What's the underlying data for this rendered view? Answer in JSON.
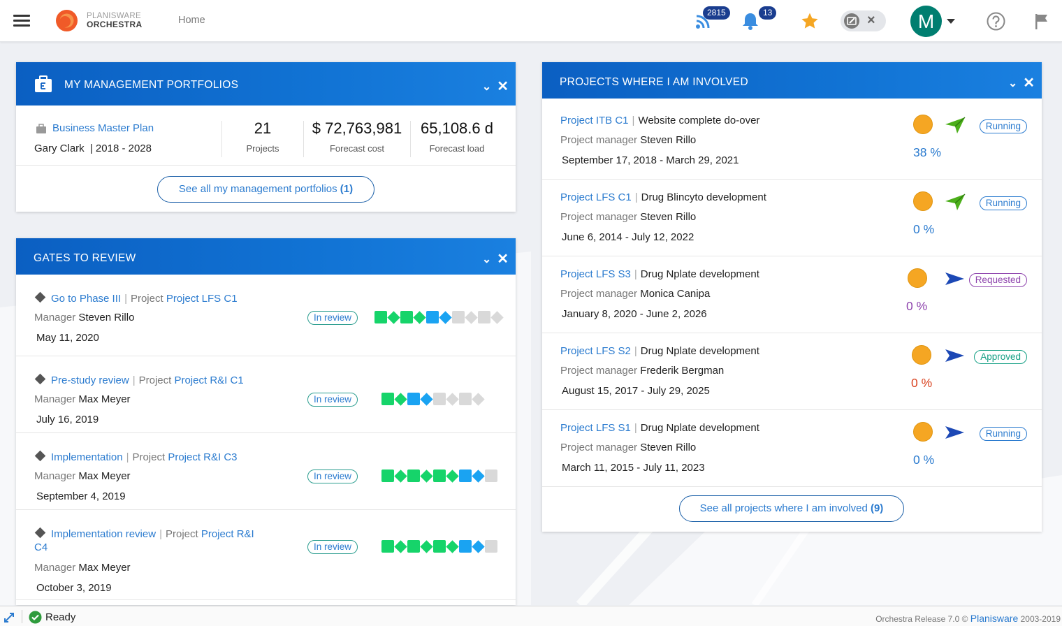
{
  "header": {
    "logo_line1": "PLANISWARE",
    "logo_line2": "ORCHESTRA",
    "home": "Home",
    "feed_count": "2815",
    "notifications_count": "13",
    "avatar_initial": "M"
  },
  "portfolios": {
    "title": "MY MANAGEMENT PORTFOLIOS",
    "name": "Business Master Plan",
    "owner": "Gary Clark",
    "period": "| 2018 - 2028",
    "stats": [
      {
        "value": "21",
        "label": "Projects"
      },
      {
        "value": "$ 72,763,981",
        "label": "Forecast cost"
      },
      {
        "value": "65,108.6 d",
        "label": "Forecast load"
      }
    ],
    "see_all_label": "See all my management portfolios",
    "see_all_count": "(1)"
  },
  "gates": {
    "title": "GATES TO REVIEW",
    "project_word": "Project",
    "manager_word": "Manager",
    "items": [
      {
        "gate": "Go to Phase III",
        "project": "Project LFS C1",
        "manager": "Steven Rillo",
        "date": "May 11, 2020",
        "status": "In review",
        "states": [
          "g",
          "g",
          "g",
          "g",
          "b",
          "b",
          "x",
          "x",
          "x",
          "x"
        ]
      },
      {
        "gate": "Pre-study review",
        "project": "Project R&I C1",
        "manager": "Max Meyer",
        "date": "July 16, 2019",
        "status": "In review",
        "states": [
          "g",
          "g",
          "b",
          "b",
          "x",
          "x",
          "x",
          "x"
        ]
      },
      {
        "gate": "Implementation",
        "project": "Project R&I C3",
        "manager": "Max Meyer",
        "date": "September 4, 2019",
        "status": "In review",
        "states": [
          "g",
          "g",
          "g",
          "g",
          "g",
          "g",
          "b",
          "b",
          "x"
        ]
      },
      {
        "gate": "Implementation review",
        "project": "Project R&I",
        "project_cont": "C4",
        "manager": "Max Meyer",
        "date": "October 3, 2019",
        "status": "In review",
        "states": [
          "g",
          "g",
          "g",
          "g",
          "g",
          "g",
          "b",
          "b",
          "x"
        ]
      }
    ]
  },
  "projects": {
    "title": "PROJECTS WHERE I AM INVOLVED",
    "pm_word": "Project manager",
    "items": [
      {
        "code": "Project ITB C1",
        "name": "Website complete do-over",
        "manager": "Steven Rillo",
        "dates": "September 17, 2018 - March 29, 2021",
        "status": "Running",
        "status_color": "#2b7bcf",
        "percent": "38 %",
        "percent_color": "#2b7bcf",
        "arrow_color": "#4caf1a",
        "arrow": "green-plane-icon"
      },
      {
        "code": "Project LFS C1",
        "name": "Drug Blincyto development",
        "manager": "Steven Rillo",
        "dates": "June 6, 2014 - July 12, 2022",
        "status": "Running",
        "status_color": "#2b7bcf",
        "percent": "0 %",
        "percent_color": "#2b7bcf",
        "arrow_color": "#4caf1a",
        "arrow": "green-plane-icon"
      },
      {
        "code": "Project LFS S3",
        "name": "Drug Nplate development",
        "manager": "Monica Canipa",
        "dates": "January 8, 2020 - June 2, 2026",
        "status": "Requested",
        "status_color": "#8e44ad",
        "percent": "0 %",
        "percent_color": "#8e44ad",
        "arrow_color": "#1c48b5",
        "arrow": "blue-arrow-icon"
      },
      {
        "code": "Project LFS S2",
        "name": "Drug Nplate development",
        "manager": "Frederik Bergman",
        "dates": "August 15, 2017 - July 29, 2025",
        "status": "Approved",
        "status_color": "#16a085",
        "percent": "0 %",
        "percent_color": "#d9411e",
        "arrow_color": "#1c48b5",
        "arrow": "blue-arrow-icon"
      },
      {
        "code": "Project LFS S1",
        "name": "Drug Nplate development",
        "manager": "Steven Rillo",
        "dates": "March 11, 2015 - July 11, 2023",
        "status": "Running",
        "status_color": "#2b7bcf",
        "percent": "0 %",
        "percent_color": "#2b7bcf",
        "arrow_color": "#1c48b5",
        "arrow": "blue-arrow-icon"
      }
    ],
    "see_all_label": "See all projects where I am involved",
    "see_all_count": "(9)"
  },
  "footer": {
    "status": "Ready",
    "release": "Orchestra Release 7.0 ©",
    "brand": "Planisware",
    "years": "2003-2019"
  }
}
